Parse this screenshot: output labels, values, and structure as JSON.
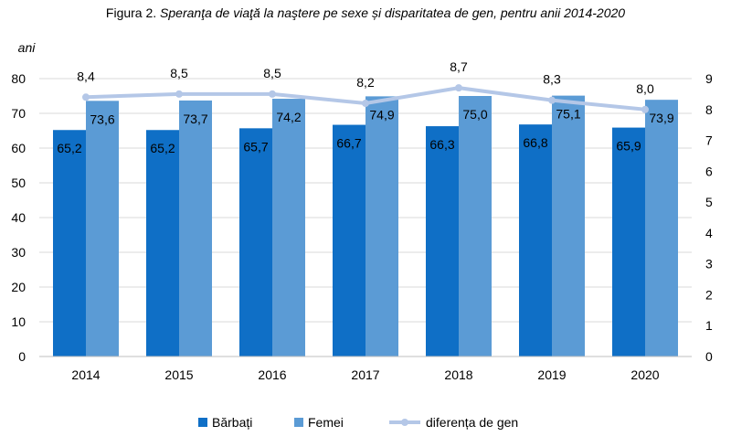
{
  "chart_data": {
    "type": "bar",
    "title_label": "Figura 2.",
    "title": "Speranţa de viaţă la naştere pe sexe și disparitatea de gen, pentru anii 2014-2020",
    "ylabel": "ani",
    "categories": [
      "2014",
      "2015",
      "2016",
      "2017",
      "2018",
      "2019",
      "2020"
    ],
    "series": [
      {
        "name": "Bărbați",
        "kind": "bar",
        "axis": "left",
        "color": "#0F6FC6",
        "values": [
          65.2,
          65.2,
          65.7,
          66.7,
          66.3,
          66.8,
          65.9
        ],
        "labels": [
          "65,2",
          "65,2",
          "65,7",
          "66,7",
          "66,3",
          "66,8",
          "65,9"
        ]
      },
      {
        "name": "Femei",
        "kind": "bar",
        "axis": "left",
        "color": "#5B9BD5",
        "values": [
          73.6,
          73.7,
          74.2,
          74.9,
          75.0,
          75.1,
          73.9
        ],
        "labels": [
          "73,6",
          "73,7",
          "74,2",
          "74,9",
          "75,0",
          "75,1",
          "73,9"
        ]
      },
      {
        "name": "diferența de gen",
        "kind": "line",
        "axis": "right",
        "color": "#B4C7E7",
        "values": [
          8.4,
          8.5,
          8.5,
          8.2,
          8.7,
          8.3,
          8.0
        ],
        "labels": [
          "8,4",
          "8,5",
          "8,5",
          "8,2",
          "8,7",
          "8,3",
          "8,0"
        ]
      }
    ],
    "ylim": [
      0,
      80
    ],
    "yticks": [
      0,
      10,
      20,
      30,
      40,
      50,
      60,
      70,
      80
    ],
    "y2lim": [
      0,
      9
    ],
    "y2ticks": [
      0,
      1,
      2,
      3,
      4,
      5,
      6,
      7,
      8,
      9
    ],
    "grid": true,
    "legend": "bottom"
  }
}
